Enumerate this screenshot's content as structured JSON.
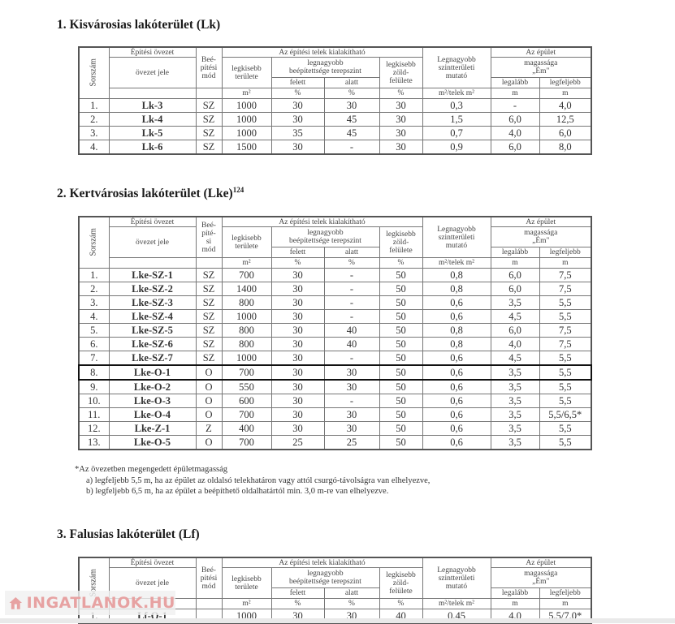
{
  "section1": {
    "title": "1.  Kisvárosias lakóterület (Lk)",
    "beep_label": "Beé-\npítési\nmód",
    "rows": [
      [
        "1.",
        "Lk-3",
        "SZ",
        "1000",
        "30",
        "30",
        "30",
        "0,3",
        "-",
        "4,0"
      ],
      [
        "2.",
        "Lk-4",
        "SZ",
        "1000",
        "30",
        "45",
        "30",
        "1,5",
        "6,0",
        "12,5"
      ],
      [
        "3.",
        "Lk-5",
        "SZ",
        "1000",
        "35",
        "45",
        "30",
        "0,7",
        "4,0",
        "6,0"
      ],
      [
        "4.",
        "Lk-6",
        "SZ",
        "1500",
        "30",
        "-",
        "30",
        "0,9",
        "6,0",
        "8,0"
      ]
    ]
  },
  "section2": {
    "title": "2.  Kertvárosias lakóterület (Lke)",
    "title_sup": "124",
    "beep_label": "Beé-\npíté-\nsi\nmód",
    "highlighted_row": 7,
    "rows": [
      [
        "1.",
        "Lke-SZ-1",
        "SZ",
        "700",
        "30",
        "-",
        "50",
        "0,8",
        "6,0",
        "7,5"
      ],
      [
        "2.",
        "Lke-SZ-2",
        "SZ",
        "1400",
        "30",
        "-",
        "50",
        "0,8",
        "6,0",
        "7,5"
      ],
      [
        "3.",
        "Lke-SZ-3",
        "SZ",
        "800",
        "30",
        "-",
        "50",
        "0,6",
        "3,5",
        "5,5"
      ],
      [
        "4.",
        "Lke-SZ-4",
        "SZ",
        "1000",
        "30",
        "-",
        "50",
        "0,6",
        "4,5",
        "5,5"
      ],
      [
        "5.",
        "Lke-SZ-5",
        "SZ",
        "800",
        "30",
        "40",
        "50",
        "0,8",
        "6,0",
        "7,5"
      ],
      [
        "6.",
        "Lke-SZ-6",
        "SZ",
        "800",
        "30",
        "40",
        "50",
        "0,8",
        "4,0",
        "7,5"
      ],
      [
        "7.",
        "Lke-SZ-7",
        "SZ",
        "1000",
        "30",
        "-",
        "50",
        "0,6",
        "4,5",
        "5,5"
      ],
      [
        "8.",
        "Lke-O-1",
        "O",
        "700",
        "30",
        "30",
        "50",
        "0,6",
        "3,5",
        "5,5"
      ],
      [
        "9.",
        "Lke-O-2",
        "O",
        "550",
        "30",
        "30",
        "50",
        "0,6",
        "3,5",
        "5,5"
      ],
      [
        "10.",
        "Lke-O-3",
        "O",
        "600",
        "30",
        "-",
        "50",
        "0,6",
        "3,5",
        "5,5"
      ],
      [
        "11.",
        "Lke-O-4",
        "O",
        "700",
        "30",
        "30",
        "50",
        "0,6",
        "3,5",
        "5,5/6,5*"
      ],
      [
        "12.",
        "Lke-Z-1",
        "Z",
        "400",
        "30",
        "30",
        "50",
        "0,6",
        "3,5",
        "5,5"
      ],
      [
        "13.",
        "Lke-O-5",
        "O",
        "700",
        "25",
        "25",
        "50",
        "0,6",
        "3,5",
        "5,5"
      ]
    ]
  },
  "footnote": {
    "heading": "*Az övezetben megengedett épületmagasság",
    "a": "a) legfeljebb 5,5 m, ha az épület az oldalsó telekhatáron vagy attól csurgó-távolságra van elhelyezve,",
    "b": "b) legfeljebb 6,5 m, ha az épület a beépíthető oldalhatártól min. 3,0 m-re van elhelyezve."
  },
  "section3": {
    "title": "3.  Falusias lakóterület (Lf)",
    "beep_label": "Beé-\npítési\nmód",
    "rows": [
      [
        "1.",
        "Lf-O-1",
        "",
        "1000",
        "30",
        "30",
        "40",
        "0,45",
        "4,0",
        "5,5/7,0*"
      ]
    ]
  },
  "header": {
    "sorszam": "Sorszám",
    "epitesi_ovezet": "Építési övezet",
    "ovezet_jele": "övezet jele",
    "telek": "Az építési telek kialakítható",
    "legkisebb_terulete": "legkisebb\nterülete",
    "legnagyobb_beep": "legnagyobb\nbeépítettsége terepszint",
    "felett": "felett",
    "alatt": "alatt",
    "zold": "legkisebb\nzöld-\nfelülete",
    "szint": "Legnagyobb\nszintterületi\nmutató",
    "epulet": "Az épület",
    "magassaga": "magassága\n„Ém\"",
    "legalabb": "legalább",
    "legfeljebb": "legfeljebb",
    "u_m2": "m²",
    "u_pct": "%",
    "u_mutato": "m²/telek m²",
    "u_m": "m"
  },
  "watermark": {
    "text": "INGATLANOK.HU",
    "color": "#e7a2a2"
  }
}
